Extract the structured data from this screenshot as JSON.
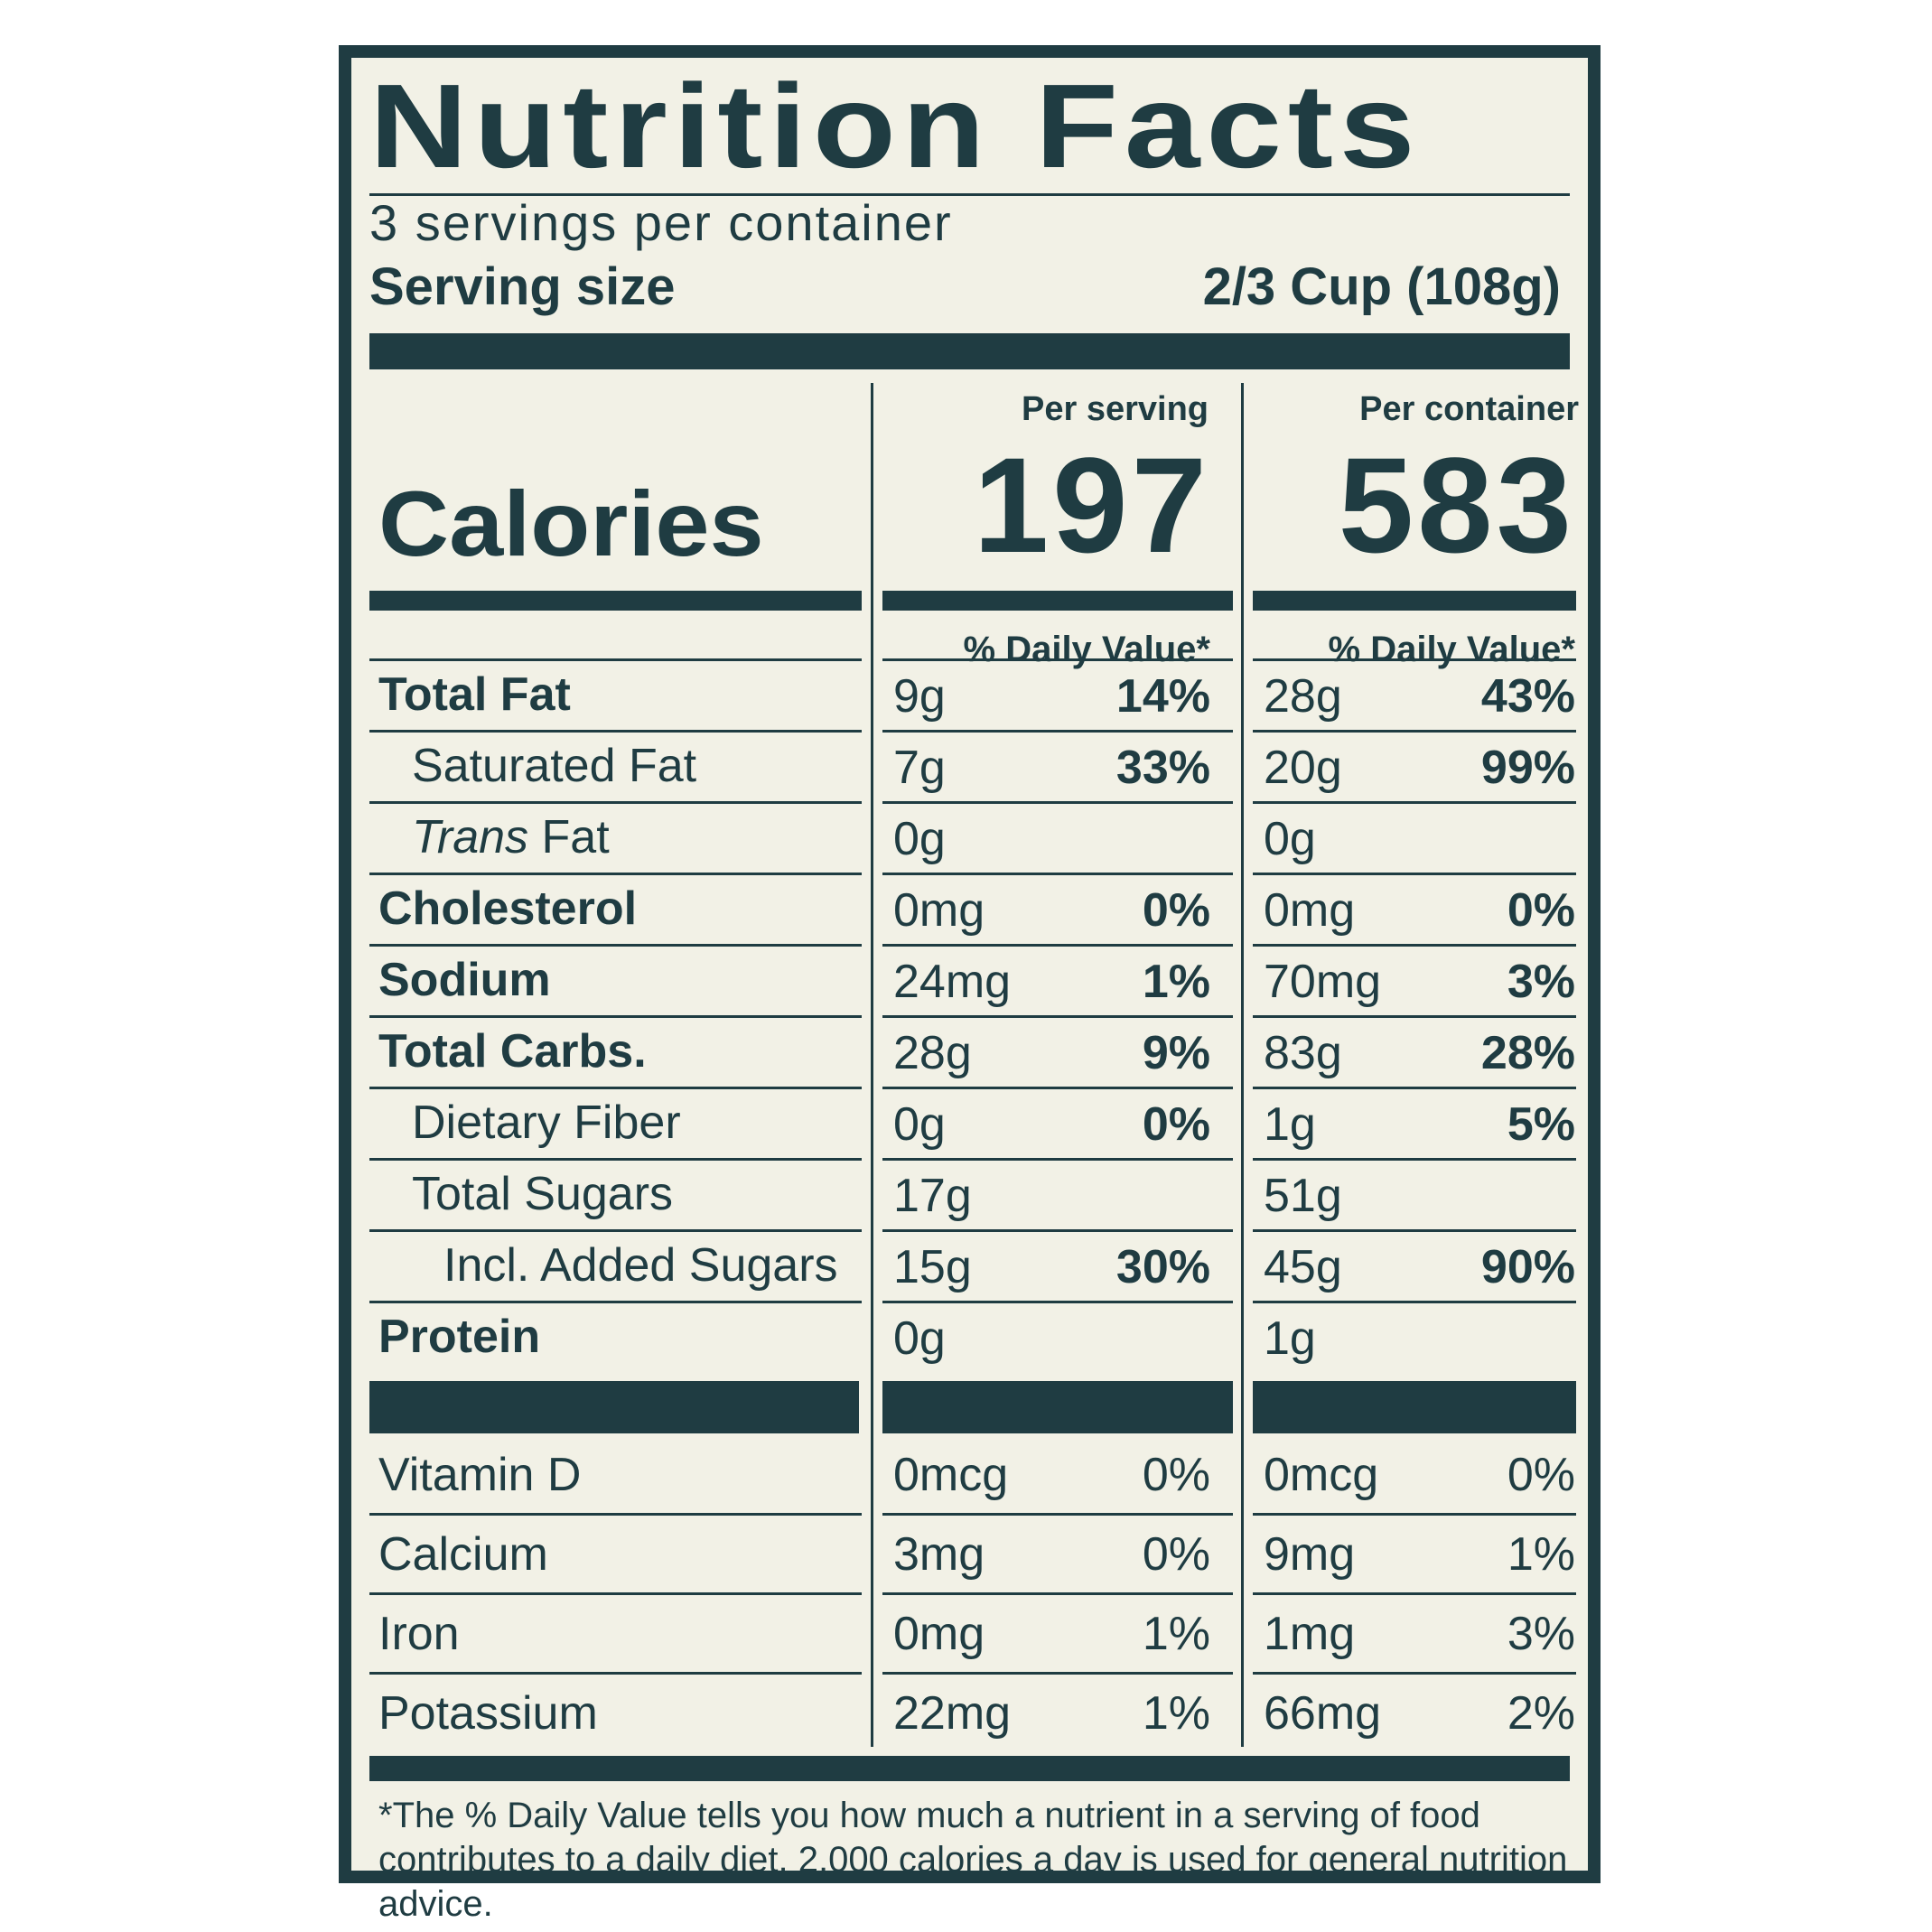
{
  "title": "Nutrition Facts",
  "servings_per_container": "3 servings per container",
  "serving_size_label": "Serving size",
  "serving_size_value": "2/3 Cup (108g)",
  "calories_label": "Calories",
  "per_serving_label": "Per serving",
  "per_container_label": "Per container",
  "calories_per_serving": "197",
  "calories_per_container": "583",
  "daily_value_header": "% Daily Value*",
  "rows": [
    {
      "name": "Total Fat",
      "bold": true,
      "indent": 0,
      "serving_amt": "9g",
      "serving_pct": "14%",
      "container_amt": "28g",
      "container_pct": "43%",
      "pct_bold": true
    },
    {
      "name": "Saturated Fat",
      "bold": false,
      "indent": 1,
      "serving_amt": "7g",
      "serving_pct": "33%",
      "container_amt": "20g",
      "container_pct": "99%",
      "pct_bold": true
    },
    {
      "name_italic": "Trans",
      "name": " Fat",
      "bold": false,
      "indent": 1,
      "serving_amt": "0g",
      "serving_pct": "",
      "container_amt": "0g",
      "container_pct": "",
      "pct_bold": true
    },
    {
      "name": "Cholesterol",
      "bold": true,
      "indent": 0,
      "serving_amt": "0mg",
      "serving_pct": "0%",
      "container_amt": "0mg",
      "container_pct": "0%",
      "pct_bold": true
    },
    {
      "name": "Sodium",
      "bold": true,
      "indent": 0,
      "serving_amt": "24mg",
      "serving_pct": "1%",
      "container_amt": "70mg",
      "container_pct": "3%",
      "pct_bold": true
    },
    {
      "name": "Total Carbs.",
      "bold": true,
      "indent": 0,
      "serving_amt": "28g",
      "serving_pct": "9%",
      "container_amt": "83g",
      "container_pct": "28%",
      "pct_bold": true
    },
    {
      "name": "Dietary Fiber",
      "bold": false,
      "indent": 1,
      "serving_amt": "0g",
      "serving_pct": "0%",
      "container_amt": "1g",
      "container_pct": "5%",
      "pct_bold": true
    },
    {
      "name": "Total Sugars",
      "bold": false,
      "indent": 1,
      "serving_amt": "17g",
      "serving_pct": "",
      "container_amt": "51g",
      "container_pct": "",
      "pct_bold": true
    },
    {
      "name": "Incl. Added Sugars",
      "bold": false,
      "indent": 2,
      "serving_amt": "15g",
      "serving_pct": "30%",
      "container_amt": "45g",
      "container_pct": "90%",
      "pct_bold": true
    },
    {
      "name": "Protein",
      "bold": true,
      "indent": 0,
      "serving_amt": "0g",
      "serving_pct": "",
      "container_amt": "1g",
      "container_pct": "",
      "pct_bold": true
    }
  ],
  "vitamins": [
    {
      "name": "Vitamin D",
      "serving_amt": "0mcg",
      "serving_pct": "0%",
      "container_amt": "0mcg",
      "container_pct": "0%"
    },
    {
      "name": "Calcium",
      "serving_amt": "3mg",
      "serving_pct": "0%",
      "container_amt": "9mg",
      "container_pct": "1%"
    },
    {
      "name": "Iron",
      "serving_amt": "0mg",
      "serving_pct": "1%",
      "container_amt": "1mg",
      "container_pct": "3%"
    },
    {
      "name": "Potassium",
      "serving_amt": "22mg",
      "serving_pct": "1%",
      "container_amt": "66mg",
      "container_pct": "2%"
    }
  ],
  "footnote": "*The % Daily Value tells you how much a nutrient in a serving of food contributes to a daily diet. 2,000 calories a day is used for general nutrition advice.",
  "colors": {
    "ink": "#1f3c42",
    "paper": "#f2f1e6"
  }
}
